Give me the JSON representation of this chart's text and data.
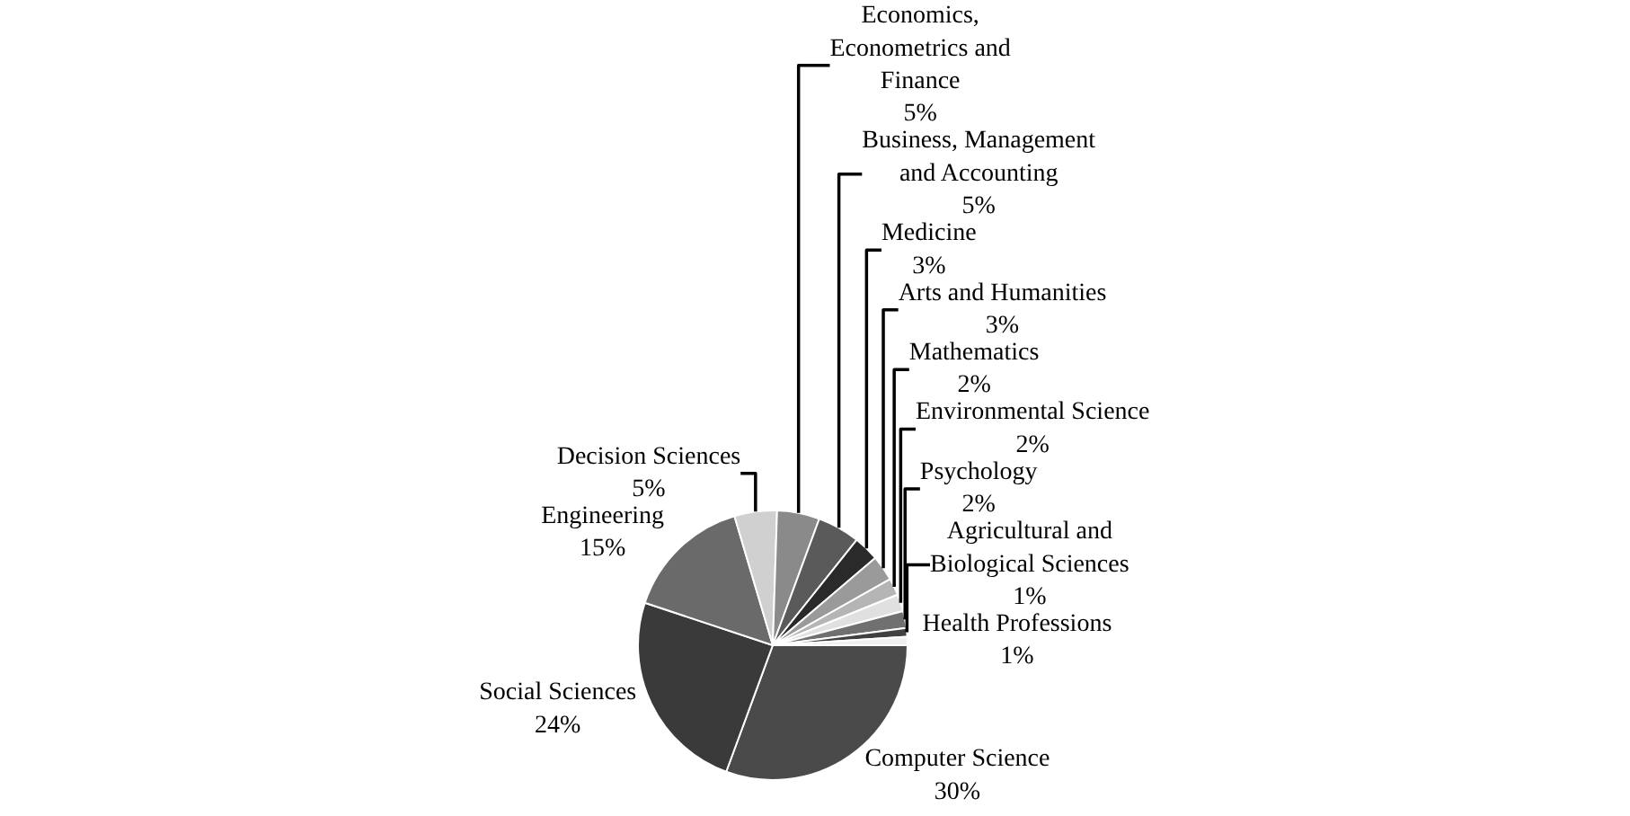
{
  "chart_data": {
    "type": "pie",
    "categories": [
      "Computer Science",
      "Social Sciences",
      "Engineering",
      "Decision Sciences",
      "Economics, Econometrics and Finance",
      "Business, Management and Accounting",
      "Medicine",
      "Arts and Humanities",
      "Mathematics",
      "Environmental Science",
      "Psychology",
      "Agricultural and Biological Sciences",
      "Health Professions"
    ],
    "values": [
      30,
      24,
      15,
      5,
      5,
      5,
      3,
      3,
      2,
      2,
      2,
      1,
      1
    ],
    "value_labels": [
      "30%",
      "24%",
      "15%",
      "5%",
      "5%",
      "5%",
      "3%",
      "3%",
      "2%",
      "2%",
      "2%",
      "1%",
      "1%"
    ],
    "colors": [
      "#4a4a4a",
      "#3a3a3a",
      "#6a6a6a",
      "#d0d0d0",
      "#8a8a8a",
      "#5a5a5a",
      "#2a2a2a",
      "#9a9a9a",
      "#b5b5b5",
      "#e0e0e0",
      "#707070",
      "#404040",
      "#f0f0f0"
    ],
    "legend": false
  }
}
